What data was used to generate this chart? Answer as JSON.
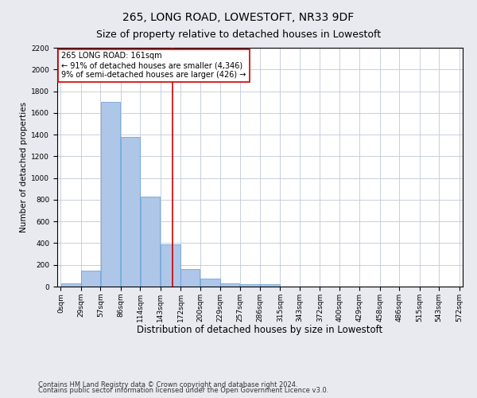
{
  "title": "265, LONG ROAD, LOWESTOFT, NR33 9DF",
  "subtitle": "Size of property relative to detached houses in Lowestoft",
  "xlabel": "Distribution of detached houses by size in Lowestoft",
  "ylabel": "Number of detached properties",
  "bar_color": "#aec6e8",
  "bar_edge_color": "#5b9bd5",
  "background_color": "#e8eaf0",
  "plot_bg_color": "#ffffff",
  "grid_color": "#c0c8d8",
  "annotation_line_color": "#cc0000",
  "annotation_box_color": "#cc0000",
  "annotation_text": "265 LONG ROAD: 161sqm\n← 91% of detached houses are smaller (4,346)\n9% of semi-detached houses are larger (426) →",
  "property_line_x": 161,
  "bins": [
    0,
    29,
    57,
    86,
    114,
    143,
    172,
    200,
    229,
    257,
    286,
    315,
    343,
    372,
    400,
    429,
    458,
    486,
    515,
    543,
    572
  ],
  "bin_labels": [
    "0sqm",
    "29sqm",
    "57sqm",
    "86sqm",
    "114sqm",
    "143sqm",
    "172sqm",
    "200sqm",
    "229sqm",
    "257sqm",
    "286sqm",
    "315sqm",
    "343sqm",
    "372sqm",
    "400sqm",
    "429sqm",
    "458sqm",
    "486sqm",
    "515sqm",
    "543sqm",
    "572sqm"
  ],
  "bar_heights": [
    30,
    150,
    1700,
    1380,
    830,
    390,
    165,
    70,
    30,
    25,
    25,
    0,
    0,
    0,
    0,
    0,
    0,
    0,
    0,
    0
  ],
  "ylim": [
    0,
    2200
  ],
  "yticks": [
    0,
    200,
    400,
    600,
    800,
    1000,
    1200,
    1400,
    1600,
    1800,
    2000,
    2200
  ],
  "footer_line1": "Contains HM Land Registry data © Crown copyright and database right 2024.",
  "footer_line2": "Contains public sector information licensed under the Open Government Licence v3.0.",
  "title_fontsize": 10,
  "subtitle_fontsize": 9,
  "xlabel_fontsize": 8.5,
  "ylabel_fontsize": 7.5,
  "tick_fontsize": 6.5,
  "annotation_fontsize": 7,
  "footer_fontsize": 6
}
